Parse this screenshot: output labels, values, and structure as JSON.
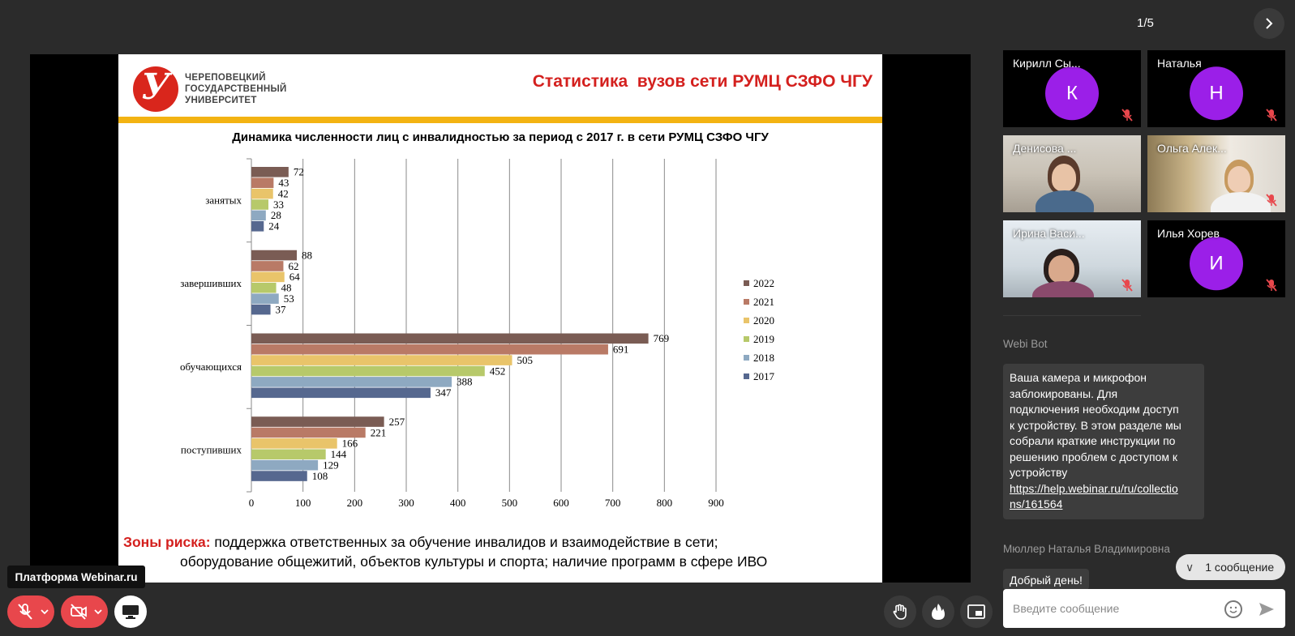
{
  "pager": {
    "text": "1/5",
    "next_icon": "chevron-right-icon"
  },
  "slide": {
    "logo_lines": [
      "ЧЕРЕПОВЕЦКИЙ",
      "ГОСУДАРСТВЕННЫЙ",
      "УНИВЕРСИТЕТ"
    ],
    "logo_glyph": "У",
    "title": "Статистика  вузов сети РУМЦ СЗФО ЧГУ",
    "risk_label": "Зоны риска:",
    "risk_line1": " поддержка ответственных за обучение инвалидов и взаимодействие в сети;",
    "risk_line2": "оборудование общежитий, объектов культуры и спорта; наличие  программ в сфере ИВО",
    "colors": {
      "title": "#d4201e",
      "accent_bar": "#f3b312",
      "logo": "#d9261c"
    }
  },
  "chart_data": {
    "type": "bar",
    "orientation": "horizontal",
    "title": "Динамика численности лиц с инвалидностью за период с 2017 г. в сети РУМЦ СЗФО ЧГУ",
    "categories": [
      "занятых",
      "завершивших",
      "обучающихся",
      "поступивших"
    ],
    "series": [
      {
        "name": "2022",
        "color": "#7a5c54",
        "values": [
          72,
          88,
          769,
          257
        ]
      },
      {
        "name": "2021",
        "color": "#b97a66",
        "values": [
          43,
          62,
          691,
          221
        ]
      },
      {
        "name": "2020",
        "color": "#e9c46a",
        "values": [
          42,
          64,
          505,
          166
        ]
      },
      {
        "name": "2019",
        "color": "#b7c96a",
        "values": [
          33,
          48,
          452,
          144
        ]
      },
      {
        "name": "2018",
        "color": "#8ea9c1",
        "values": [
          28,
          53,
          388,
          129
        ]
      },
      {
        "name": "2017",
        "color": "#56688f",
        "values": [
          24,
          37,
          347,
          108
        ]
      }
    ],
    "xlim": [
      0,
      900
    ],
    "x_ticks": [
      "0",
      "100",
      "200",
      "300",
      "400",
      "500",
      "600",
      "700",
      "800",
      "900"
    ],
    "legend": "right",
    "grid": true
  },
  "participants": [
    {
      "name": "Кирилл Сы...",
      "initial": "К",
      "video": false,
      "muted": true
    },
    {
      "name": "Наталья",
      "initial": "Н",
      "video": false,
      "muted": true
    },
    {
      "name": "Денисова ...",
      "initial": "",
      "video": true,
      "muted": false,
      "speaking": true
    },
    {
      "name": "Ольга Алек...",
      "initial": "",
      "video": true,
      "muted": true
    },
    {
      "name": "Ирина Васи...",
      "initial": "",
      "video": true,
      "muted": true
    },
    {
      "name": "Илья Хорев",
      "initial": "И",
      "video": false,
      "muted": true
    }
  ],
  "chat": {
    "messages": [
      {
        "sender": "Webi Bot",
        "lines": [
          "Ваша камера и микрофон",
          "заблокированы. Для",
          "подключения необходим доступ",
          "к устройству. В этом разделе мы",
          "собрали краткие инструкции по",
          "решению проблем с доступом к",
          "устройству"
        ],
        "link_lines": [
          "https://help.webinar.ru/ru/collectio",
          "ns/161564"
        ]
      },
      {
        "sender": "Мюллер Наталья Владимировна",
        "text": "Добрый день!"
      }
    ],
    "new_messages": "1 сообщение",
    "input_placeholder": "Введите сообщение"
  },
  "controls": {
    "platform_tip": "Платформа Webinar.ru",
    "mic_icon": "mic-off-icon",
    "cam_icon": "camera-off-icon",
    "screen_icon": "screen-share-icon",
    "hand_icon": "raise-hand-icon",
    "reaction_icon": "flame-icon",
    "layout_icon": "picture-in-picture-icon"
  }
}
